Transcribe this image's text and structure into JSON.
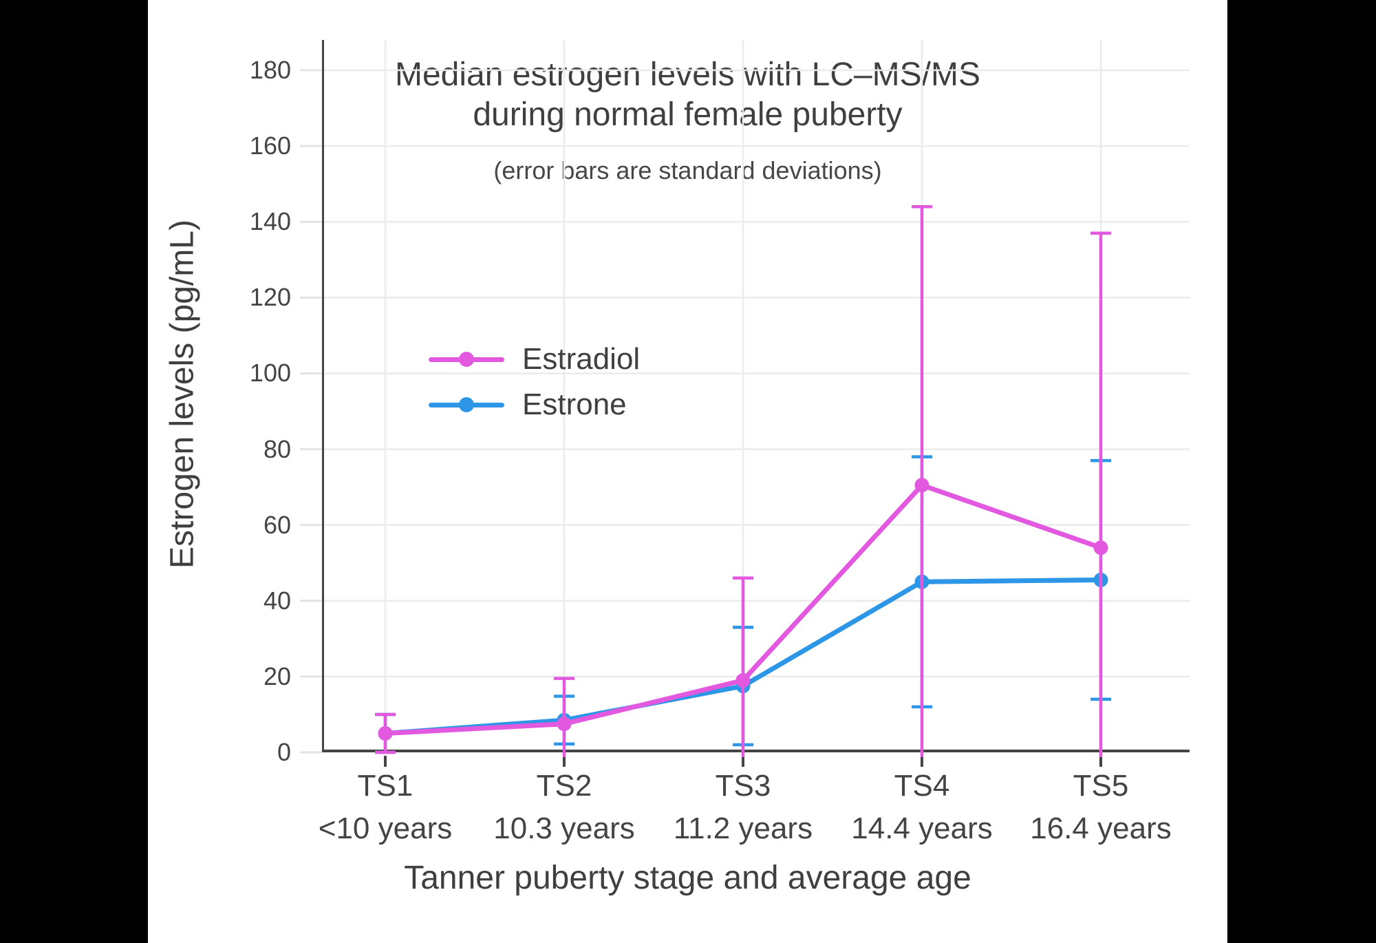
{
  "page": {
    "background_color": "#000000",
    "canvas_color": "#ffffff",
    "text_color": "#3f3f3f",
    "gridline_color": "#ebebeb",
    "axis_color": "#444444"
  },
  "chart_data": {
    "type": "line",
    "title_lines": [
      "Median estrogen levels with LC–MS/MS",
      "during normal female puberty"
    ],
    "subtitle": "(error bars are standard deviations)",
    "ylabel": "Estrogen levels (pg/mL)",
    "xlabel": "Tanner puberty stage and average age",
    "error_bars": "standard deviations",
    "grid": true,
    "legend_position": "inside-middle-left",
    "categories": [
      {
        "stage": "TS1",
        "age": "<10 years"
      },
      {
        "stage": "TS2",
        "age": "10.3 years"
      },
      {
        "stage": "TS3",
        "age": "11.2 years"
      },
      {
        "stage": "TS4",
        "age": "14.4 years"
      },
      {
        "stage": "TS5",
        "age": "16.4 years"
      }
    ],
    "yticks": [
      0,
      20,
      40,
      60,
      80,
      100,
      120,
      140,
      160,
      180
    ],
    "ylim": [
      0,
      188
    ],
    "series": [
      {
        "name": "Estradiol",
        "color": "#e259df",
        "values": [
          5,
          7.5,
          19,
          70.5,
          54
        ],
        "sd": [
          5,
          12,
          27,
          73.5,
          83
        ]
      },
      {
        "name": "Estrone",
        "color": "#2d96e6",
        "values": [
          5,
          8.5,
          17.5,
          45,
          45.5
        ],
        "sd": [
          5,
          6.3,
          15.5,
          33,
          31.5
        ]
      }
    ]
  }
}
